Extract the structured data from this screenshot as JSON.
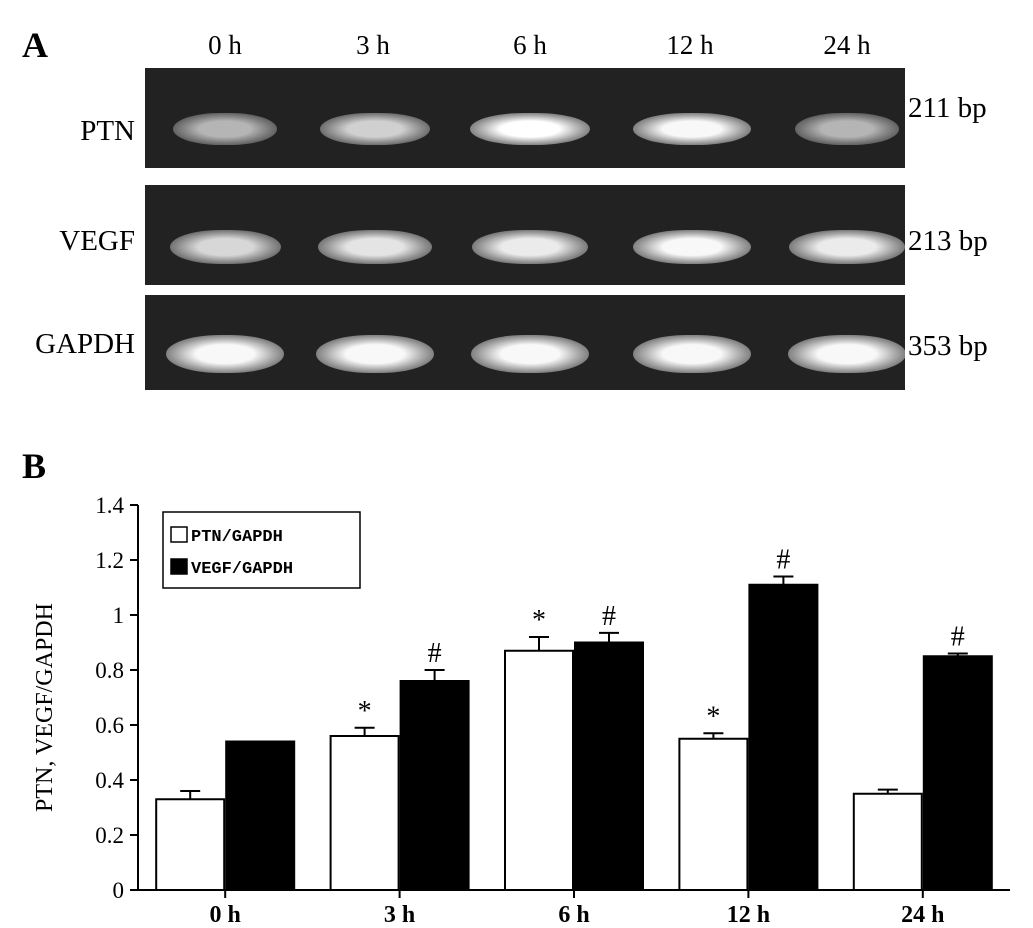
{
  "panel_a": {
    "label": "A",
    "lanes": [
      "0 h",
      "3 h",
      "6 h",
      "12 h",
      "24 h"
    ],
    "rows": [
      {
        "name": "PTN",
        "size": "211 bp",
        "intensity": [
          0.45,
          0.65,
          1.0,
          0.95,
          0.45
        ]
      },
      {
        "name": "VEGF",
        "size": "213 bp",
        "intensity": [
          0.7,
          0.8,
          0.85,
          0.95,
          0.85
        ]
      },
      {
        "name": "GAPDH",
        "size": "353 bp",
        "intensity": [
          0.95,
          0.95,
          0.95,
          0.95,
          0.95
        ]
      }
    ]
  },
  "panel_b": {
    "label": "B"
  },
  "chart_data": {
    "type": "bar",
    "categories": [
      "0 h",
      "3 h",
      "6 h",
      "12 h",
      "24 h"
    ],
    "series": [
      {
        "name": "PTN/GAPDH",
        "color": "#ffffff",
        "values": [
          0.33,
          0.56,
          0.87,
          0.55,
          0.35
        ],
        "errors": [
          0.03,
          0.03,
          0.05,
          0.02,
          0.015
        ],
        "marks": [
          "",
          "*",
          "*",
          "*",
          ""
        ]
      },
      {
        "name": "VEGF/GAPDH",
        "color": "#000000",
        "values": [
          0.54,
          0.76,
          0.9,
          1.11,
          0.85
        ],
        "errors": [
          0.0,
          0.04,
          0.035,
          0.03,
          0.01
        ],
        "marks": [
          "",
          "#",
          "#",
          "#",
          "#"
        ]
      }
    ],
    "ylabel": "PTN, VEGF/GAPDH",
    "xlabel": "",
    "ylim": [
      0,
      1.4
    ],
    "yticks": [
      "0",
      "0.2",
      "0.4",
      "0.6",
      "0.8",
      "1",
      "1.2",
      "1.4"
    ],
    "legend": "top-left",
    "grid": false
  }
}
